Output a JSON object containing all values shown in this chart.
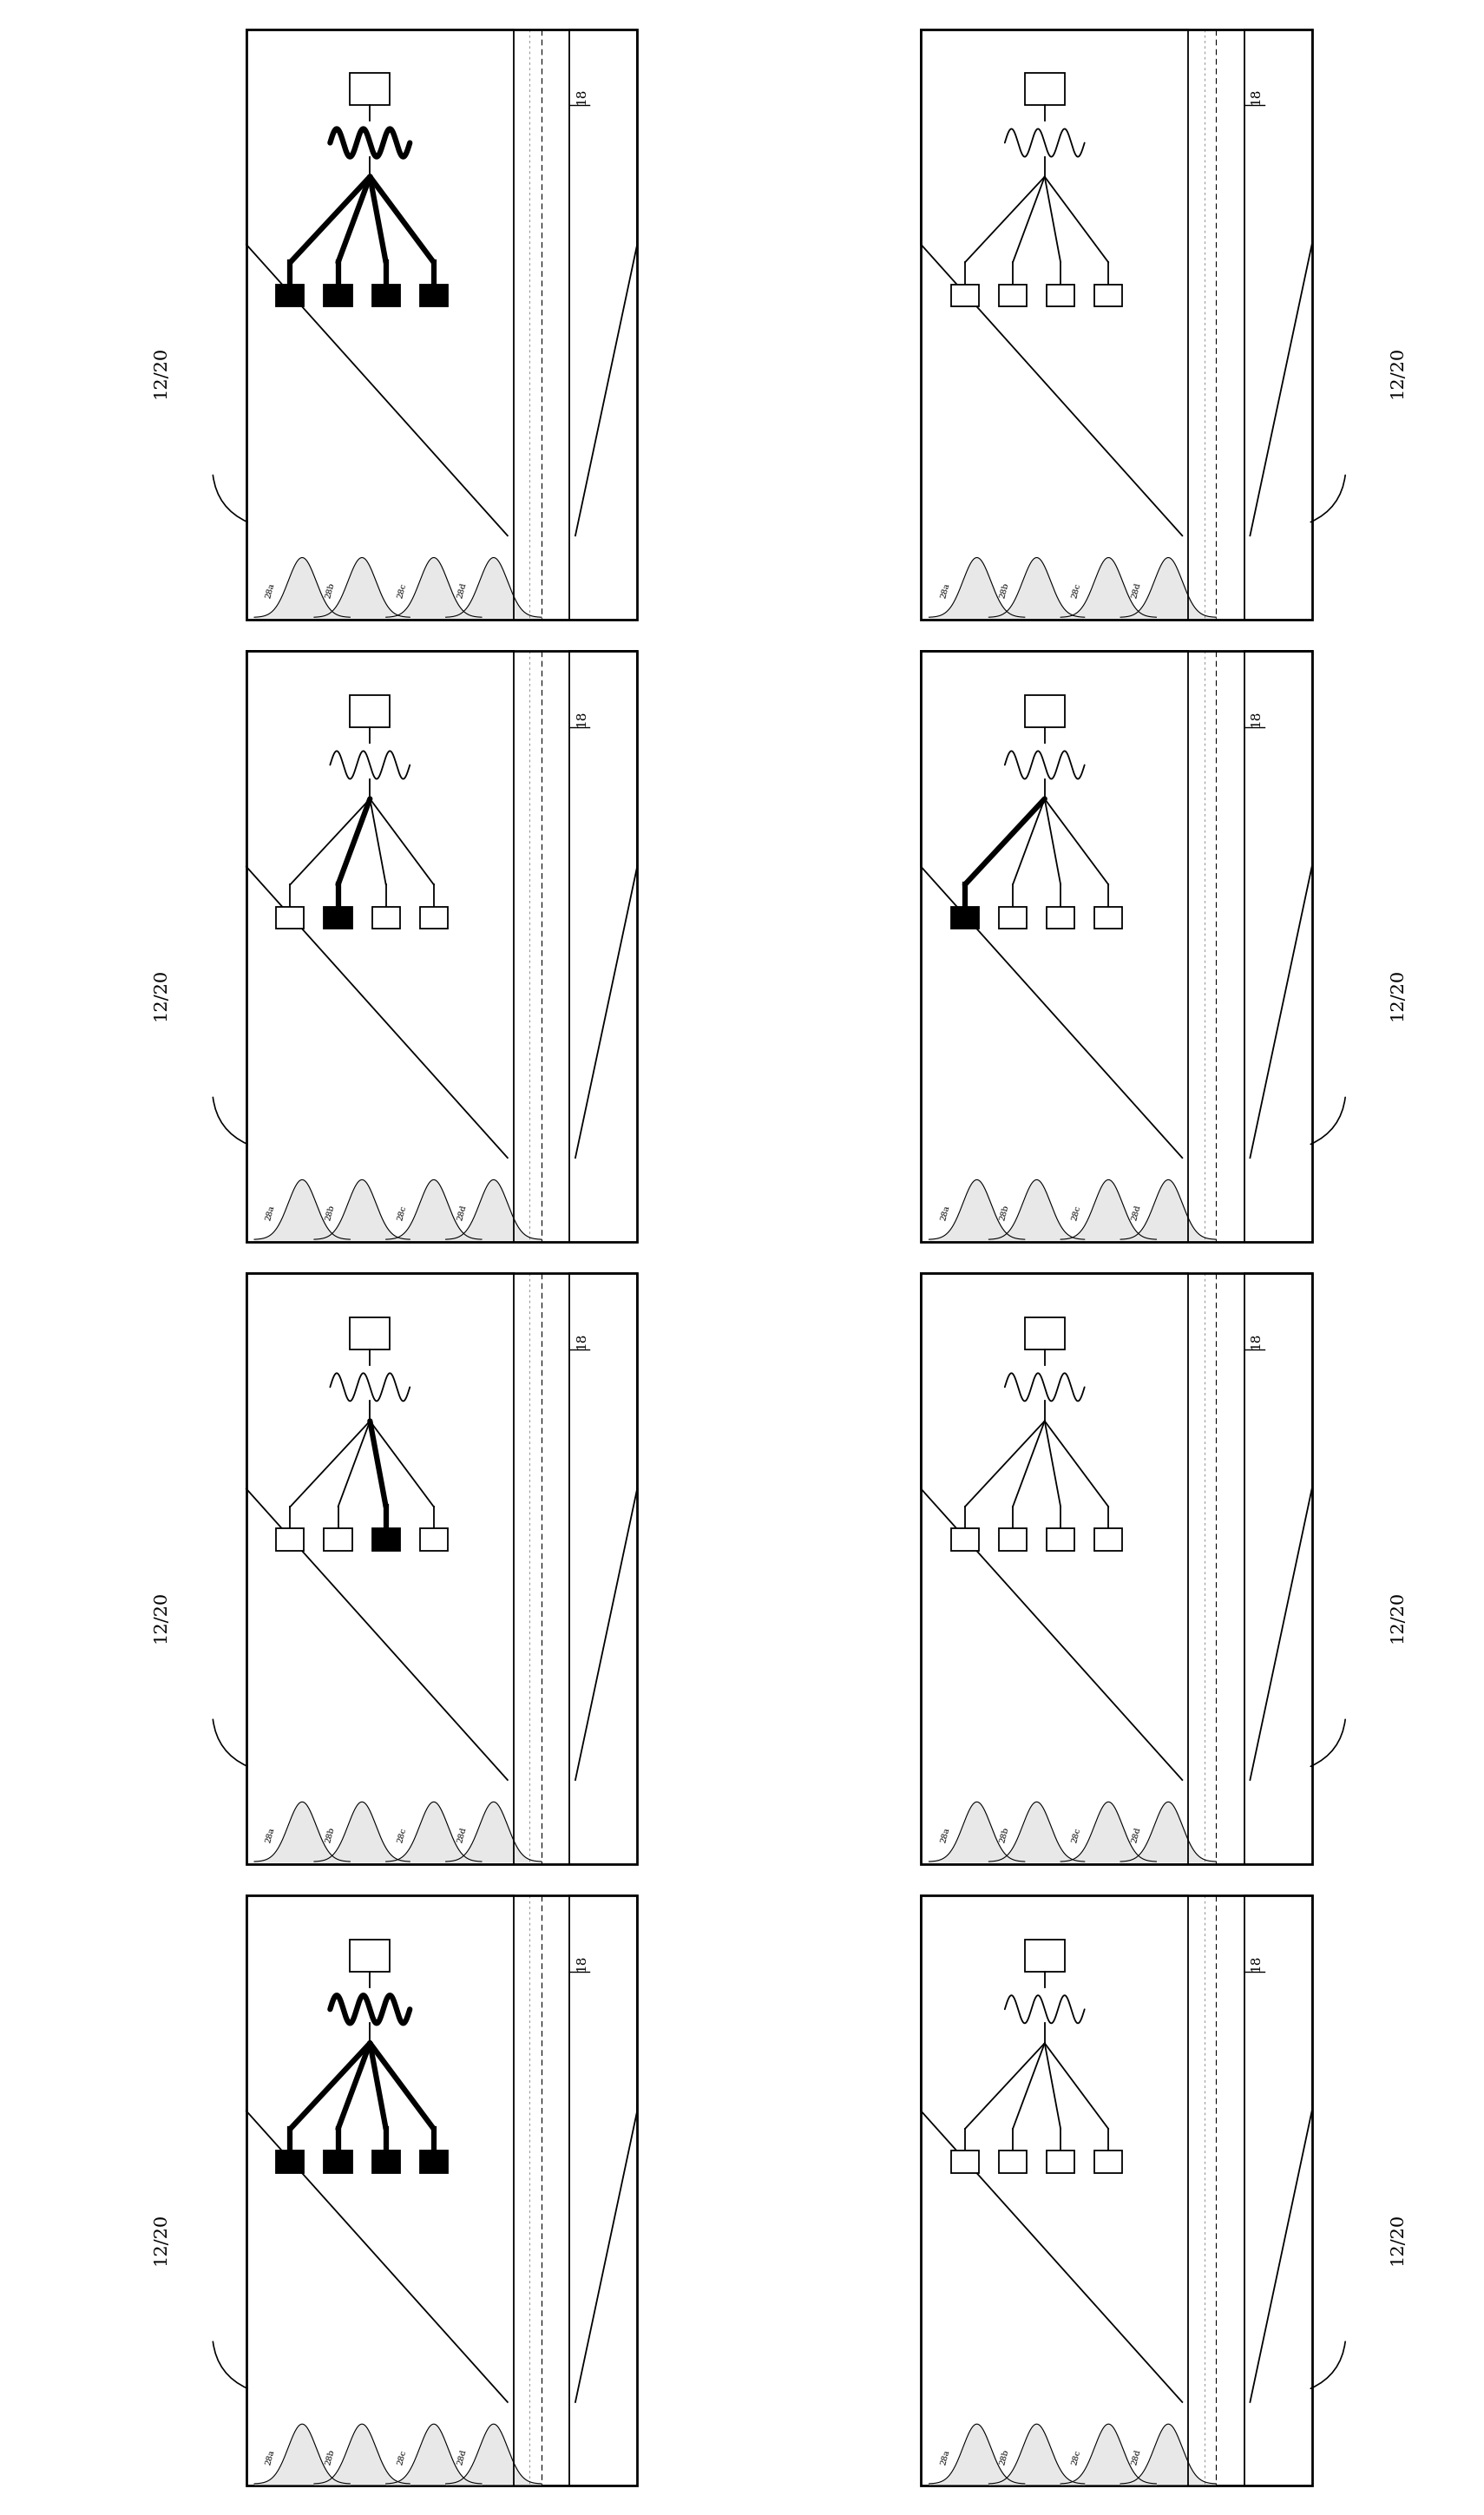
{
  "rows": 4,
  "cols": 2,
  "fig_width": 17.1,
  "fig_height": 28.98,
  "wire_labels": [
    "28a",
    "28b",
    "28c",
    "28d"
  ],
  "bold_wire_patterns": [
    [
      0,
      1,
      2,
      3
    ],
    [],
    [
      1
    ],
    [
      0
    ],
    [
      2
    ],
    [],
    [
      0,
      1,
      2,
      3
    ],
    []
  ],
  "coil_bold": [
    true,
    false,
    false,
    false,
    false,
    false,
    true,
    false
  ],
  "label_left_cols": [
    0
  ],
  "label_right_cols": [
    1
  ],
  "panel_label": "12/20",
  "tube_label": "18"
}
